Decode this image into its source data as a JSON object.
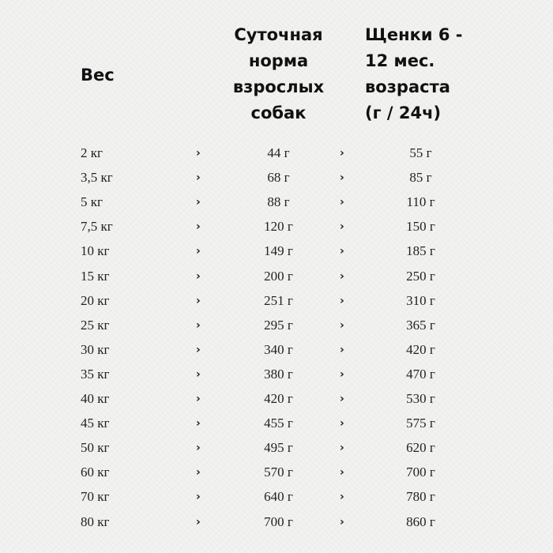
{
  "header": {
    "weight": "Вес",
    "adult": [
      "Суточная",
      "норма",
      "взрослых",
      "собак"
    ],
    "puppy": [
      "Щенки 6 -",
      "12 мес.",
      "возраста",
      "(г / 24ч)"
    ]
  },
  "separator": "›",
  "rows": [
    {
      "weight": "2 кг",
      "adult": "44 г",
      "puppy": "55 г"
    },
    {
      "weight": "3,5 кг",
      "adult": "68 г",
      "puppy": "85 г"
    },
    {
      "weight": "5 кг",
      "adult": "88 г",
      "puppy": "110 г"
    },
    {
      "weight": "7,5 кг",
      "adult": "120 г",
      "puppy": "150 г"
    },
    {
      "weight": "10 кг",
      "adult": "149 г",
      "puppy": "185 г"
    },
    {
      "weight": "15 кг",
      "adult": "200 г",
      "puppy": "250 г"
    },
    {
      "weight": "20 кг",
      "adult": "251 г",
      "puppy": "310 г"
    },
    {
      "weight": "25 кг",
      "adult": "295 г",
      "puppy": "365 г"
    },
    {
      "weight": "30 кг",
      "adult": "340 г",
      "puppy": "420 г"
    },
    {
      "weight": "35 кг",
      "adult": "380 г",
      "puppy": "470 г"
    },
    {
      "weight": "40 кг",
      "adult": "420 г",
      "puppy": "530 г"
    },
    {
      "weight": "45 кг",
      "adult": "455 г",
      "puppy": "575 г"
    },
    {
      "weight": "50 кг",
      "adult": "495 г",
      "puppy": "620 г"
    },
    {
      "weight": "60 кг",
      "adult": "570 г",
      "puppy": "700 г"
    },
    {
      "weight": "70 кг",
      "adult": "640 г",
      "puppy": "780 г"
    },
    {
      "weight": "80 кг",
      "adult": "700 г",
      "puppy": "860 г"
    }
  ]
}
